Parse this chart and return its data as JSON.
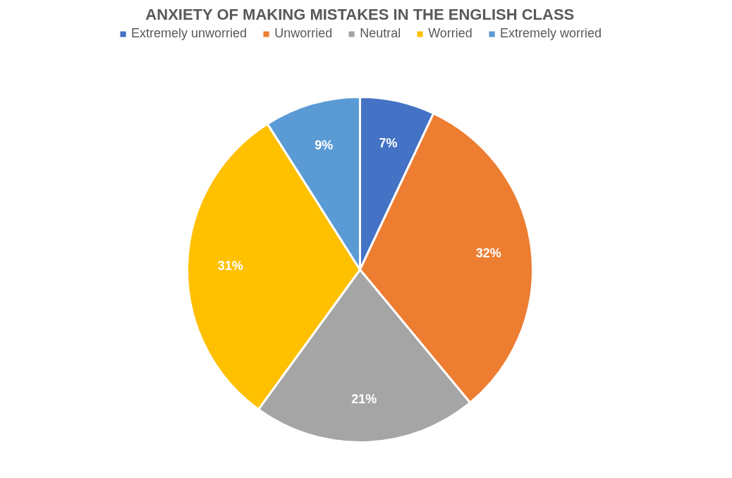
{
  "chart_data": {
    "type": "pie",
    "title": "ANXIETY OF MAKING MISTAKES IN THE ENGLISH CLASS",
    "categories": [
      "Extremely unworried",
      "Unworried",
      "Neutral",
      "Worried",
      "Extremely worried"
    ],
    "values": [
      7,
      32,
      21,
      31,
      9
    ],
    "colors": [
      "#4472c4",
      "#ed7d31",
      "#a5a5a5",
      "#ffc000",
      "#5b9bd5"
    ],
    "value_labels": [
      "7%",
      "32%",
      "21%",
      "31%",
      "9%"
    ],
    "legend": "top"
  }
}
